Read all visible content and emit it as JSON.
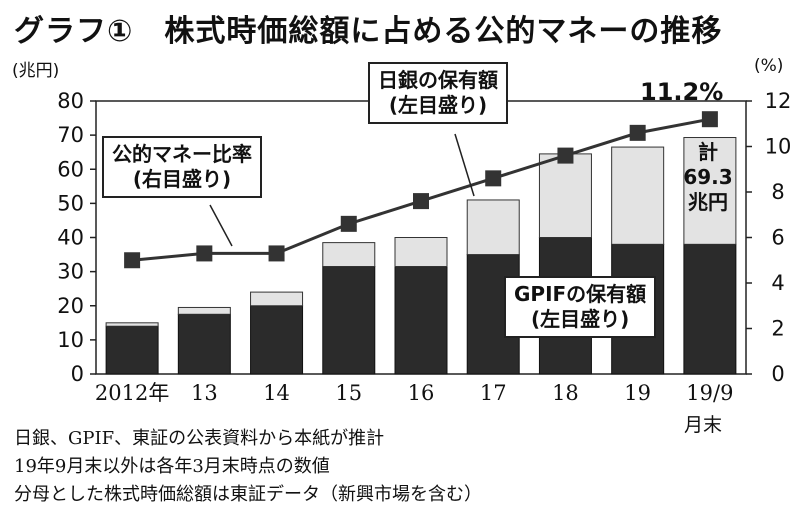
{
  "title": "グラフ①　株式時価総額に占める公的マネーの推移",
  "units": {
    "left": "(兆円)",
    "right": "(%)"
  },
  "month_end": "月末",
  "notes": [
    "日銀、GPIF、東証の公表資料から本紙が推計",
    "19年9月末以外は各年3月末時点の数値",
    "分母とした株式時価総額は東証データ（新興市場を含む）"
  ],
  "callouts": {
    "ratio": [
      "公的マネー比率",
      "(右目盛り)"
    ],
    "boj": [
      "日銀の保有額",
      "(左目盛り)"
    ],
    "gpif": [
      "GPIFの保有額",
      "(左目盛り)"
    ]
  },
  "total_label": [
    "計",
    "69.3",
    "兆円"
  ],
  "last_pct_label": "11.2%",
  "colors": {
    "gpif": "#2b2b2b",
    "boj": "#e3e3e3",
    "line": "#333333",
    "text": "#111111"
  },
  "chart_data": {
    "type": "bar+line",
    "categories": [
      "2012年",
      "13",
      "14",
      "15",
      "16",
      "17",
      "18",
      "19",
      "19/9"
    ],
    "series": [
      {
        "name": "GPIFの保有額",
        "axis": "left",
        "type": "stacked-bar",
        "values": [
          14,
          17.5,
          20,
          31.5,
          31.5,
          35,
          40,
          38,
          38
        ]
      },
      {
        "name": "日銀の保有額",
        "axis": "left",
        "type": "stacked-bar",
        "values": [
          1,
          2,
          4,
          7,
          8.5,
          16,
          24.5,
          28.5,
          31.3
        ]
      },
      {
        "name": "公的マネー比率",
        "axis": "right",
        "type": "line",
        "values": [
          5.0,
          5.3,
          5.3,
          6.6,
          7.6,
          8.6,
          9.6,
          10.6,
          11.2
        ]
      }
    ],
    "yleft": {
      "label": "(兆円)",
      "ylim": [
        0,
        80
      ],
      "ticks": [
        0,
        10,
        20,
        30,
        40,
        50,
        60,
        70,
        80
      ]
    },
    "yright": {
      "label": "(%)",
      "ylim": [
        0,
        12
      ],
      "ticks": [
        0,
        2,
        4,
        6,
        8,
        10,
        12
      ]
    },
    "grid": false,
    "annotations": [
      "11.2%",
      "計69.3兆円"
    ]
  }
}
